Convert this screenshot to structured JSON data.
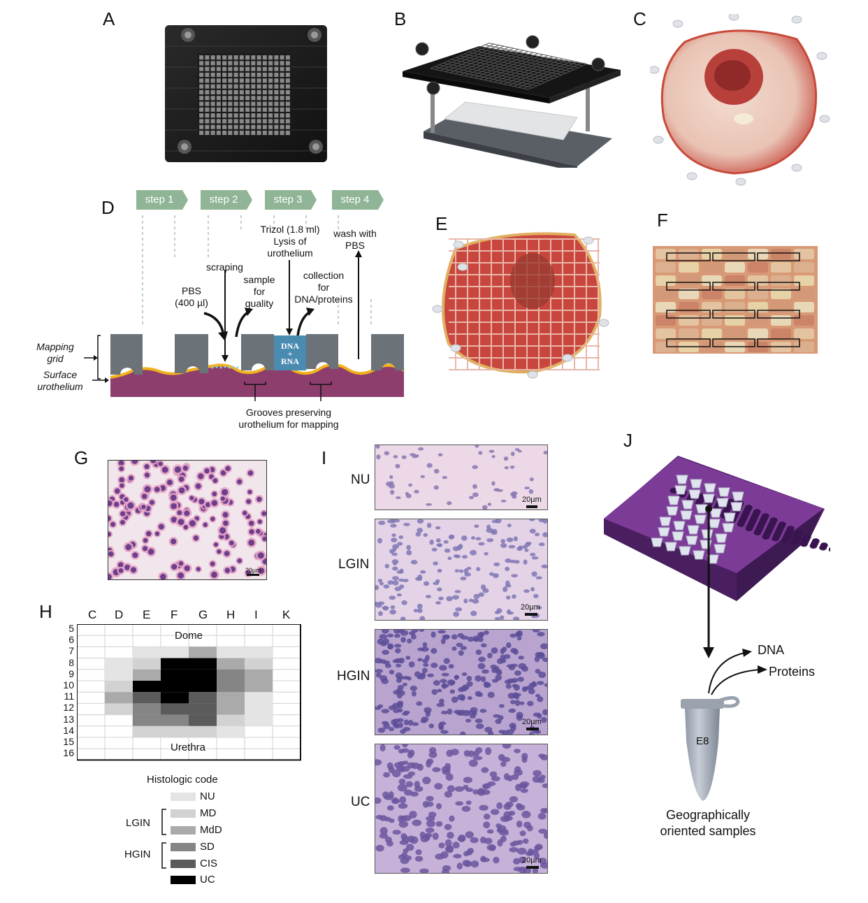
{
  "panels": {
    "A": "A",
    "B": "B",
    "C": "C",
    "D": "D",
    "E": "E",
    "F": "F",
    "G": "G",
    "H": "H",
    "I": "I",
    "J": "J"
  },
  "diagram_d": {
    "steps": [
      "step 1",
      "step 2",
      "step 3",
      "step 4"
    ],
    "step_color": "#8fb496",
    "trizol": [
      "Trizol (1.8 ml)",
      "Lysis of",
      "urothelium"
    ],
    "wash": [
      "wash with",
      "PBS"
    ],
    "scraping": "scraping",
    "collection": [
      "collection",
      "for",
      "DNA/proteins"
    ],
    "sample": [
      "sample",
      "for",
      "quality"
    ],
    "pbs": [
      "PBS",
      "(400 µl)"
    ],
    "well_label": [
      "DNA",
      "+",
      "RNA"
    ],
    "mapping_grid": [
      "Mapping",
      "grid"
    ],
    "surface": [
      "Surface",
      "urothelium"
    ],
    "grooves": [
      "Grooves preserving",
      "urothelium for mapping"
    ],
    "colors": {
      "grid": "#6b7278",
      "tissue": "#8e3e6c",
      "urothelium": "#f0b21e",
      "well": "#4a8bb2"
    }
  },
  "panel_i": {
    "labels": [
      "NU",
      "LGIN",
      "HGIN",
      "UC"
    ],
    "scalebar": "20µm"
  },
  "panel_g": {
    "scalebar": "20µm"
  },
  "heatmap_h": {
    "columns": [
      "C",
      "D",
      "E",
      "F",
      "G",
      "H",
      "I",
      "K"
    ],
    "rows": [
      "5",
      "6",
      "7",
      "8",
      "9",
      "10",
      "11",
      "12",
      "13",
      "14",
      "15",
      "16"
    ],
    "top_label": "Dome",
    "bottom_label": "Urethra",
    "legend_title": "Histologic code",
    "legend": [
      {
        "code": "NU",
        "color": "#e4e4e4"
      },
      {
        "code": "MD",
        "color": "#d2d2d2"
      },
      {
        "code": "MdD",
        "color": "#aaaaaa"
      },
      {
        "code": "SD",
        "color": "#858585"
      },
      {
        "code": "CIS",
        "color": "#5b5b5b"
      },
      {
        "code": "UC",
        "color": "#000000"
      }
    ],
    "groups": [
      "LGIN",
      "HGIN"
    ]
  },
  "panel_j": {
    "dna": "DNA",
    "proteins": "Proteins",
    "tube_label": "E8",
    "caption": [
      "Geographically",
      "oriented samples"
    ]
  }
}
